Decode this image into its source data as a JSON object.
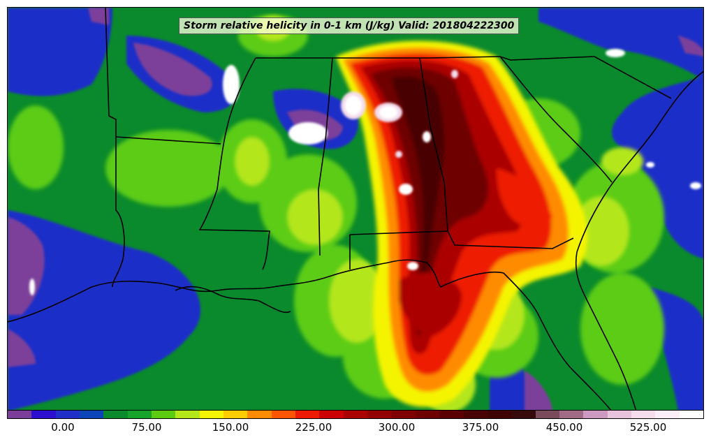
{
  "title": "Storm relative helicity in 0-1 km (J/kg) Valid: 201804222300",
  "colorbar": {
    "colors": [
      "#7b3f9a",
      "#2d0fcf",
      "#1f2fc8",
      "#0b45b8",
      "#0a8a2c",
      "#16a32a",
      "#5ccc12",
      "#b4e61a",
      "#f4f400",
      "#ffcc00",
      "#ff8c00",
      "#ff5500",
      "#ee1a00",
      "#cc0000",
      "#aa0000",
      "#920000",
      "#800000",
      "#6e0000",
      "#5a0000",
      "#490000",
      "#3f0000",
      "#360a0a",
      "#7a4b5a",
      "#a16b86",
      "#cc99c0",
      "#e8c4dc",
      "#f4dcec",
      "#fbeef8",
      "#ffffff"
    ],
    "tick_labels": [
      "0.00",
      "75.00",
      "150.00",
      "225.00",
      "300.00",
      "375.00",
      "450.00",
      "525.00"
    ]
  },
  "map": {
    "field": "Storm relative helicity 0-1 km",
    "units": "J/kg",
    "valid_time": "201804222300"
  }
}
